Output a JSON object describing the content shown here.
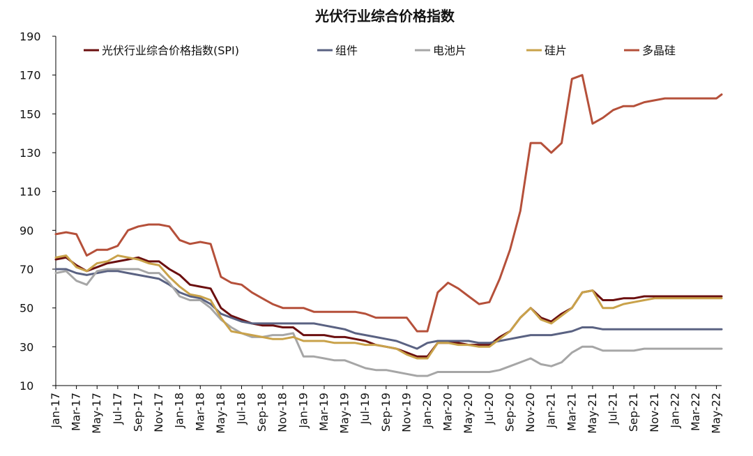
{
  "chart_data": {
    "type": "line",
    "title": "光伏行业综合价格指数",
    "xlabel": "",
    "ylabel": "",
    "ylim": [
      10,
      190
    ],
    "yticks": [
      10,
      30,
      50,
      70,
      90,
      110,
      130,
      150,
      170,
      190
    ],
    "grid": false,
    "legend_position": "top",
    "x_tick_labels": [
      "Jan-17",
      "Mar-17",
      "May-17",
      "Jul-17",
      "Sep-17",
      "Nov-17",
      "Jan-18",
      "Mar-18",
      "May-18",
      "Jul-18",
      "Sep-18",
      "Nov-18",
      "Jan-19",
      "Mar-19",
      "May-19",
      "Jul-19",
      "Sep-19",
      "Nov-19",
      "Jan-20",
      "Mar-20",
      "May-20",
      "Jul-20",
      "Sep-20",
      "Nov-20",
      "Jan-21",
      "Mar-21",
      "May-21",
      "Jul-21",
      "Sep-21",
      "Nov-21",
      "Jan-22",
      "Mar-22",
      "May-22"
    ],
    "x_range": [
      0,
      64.5
    ],
    "series": [
      {
        "name": "光伏行业综合价格指数(SPI)",
        "color": "#6b0f0f",
        "x": [
          0,
          1,
          2,
          3,
          4,
          5,
          6,
          7,
          8,
          9,
          10,
          11,
          12,
          13,
          14,
          15,
          16,
          17,
          18,
          19,
          20,
          21,
          22,
          23,
          24,
          25,
          26,
          27,
          28,
          29,
          30,
          31,
          32,
          33,
          34,
          35,
          36,
          37,
          38,
          39,
          40,
          41,
          42,
          43,
          44,
          45,
          46,
          47,
          48,
          49,
          50,
          51,
          52,
          53,
          54,
          55,
          56,
          57,
          58,
          59,
          60,
          61,
          62,
          63,
          64,
          64.5
        ],
        "y": [
          75,
          76,
          72,
          69,
          71,
          73,
          74,
          75,
          76,
          74,
          74,
          70,
          67,
          62,
          61,
          60,
          50,
          46,
          44,
          42,
          41,
          41,
          40,
          40,
          36,
          36,
          36,
          35,
          35,
          34,
          33,
          31,
          30,
          29,
          27,
          25,
          25,
          32,
          32,
          32,
          31,
          31,
          31,
          35,
          38,
          45,
          50,
          45,
          43,
          47,
          50,
          58,
          59,
          54,
          54,
          55,
          55,
          56,
          56,
          56,
          56,
          56,
          56,
          56,
          56,
          56
        ]
      },
      {
        "name": "组件",
        "color": "#5a6282",
        "x": [
          0,
          1,
          2,
          3,
          4,
          5,
          6,
          7,
          8,
          9,
          10,
          11,
          12,
          13,
          14,
          15,
          16,
          17,
          18,
          19,
          20,
          21,
          22,
          23,
          24,
          25,
          26,
          27,
          28,
          29,
          30,
          31,
          32,
          33,
          34,
          35,
          36,
          37,
          38,
          39,
          40,
          41,
          42,
          43,
          44,
          45,
          46,
          47,
          48,
          49,
          50,
          51,
          52,
          53,
          54,
          55,
          56,
          57,
          58,
          59,
          60,
          61,
          62,
          63,
          64,
          64.5
        ],
        "y": [
          70,
          70,
          68,
          67,
          68,
          69,
          69,
          68,
          67,
          66,
          65,
          62,
          58,
          56,
          55,
          52,
          47,
          45,
          43,
          42,
          42,
          42,
          42,
          42,
          42,
          42,
          41,
          40,
          39,
          37,
          36,
          35,
          34,
          33,
          31,
          29,
          32,
          33,
          33,
          33,
          33,
          32,
          32,
          33,
          34,
          35,
          36,
          36,
          36,
          37,
          38,
          40,
          40,
          39,
          39,
          39,
          39,
          39,
          39,
          39,
          39,
          39,
          39,
          39,
          39,
          39
        ]
      },
      {
        "name": "电池片",
        "color": "#a6a6a6",
        "x": [
          0,
          1,
          2,
          3,
          4,
          5,
          6,
          7,
          8,
          9,
          10,
          11,
          12,
          13,
          14,
          15,
          16,
          17,
          18,
          19,
          20,
          21,
          22,
          23,
          24,
          25,
          26,
          27,
          28,
          29,
          30,
          31,
          32,
          33,
          34,
          35,
          36,
          37,
          38,
          39,
          40,
          41,
          42,
          43,
          44,
          45,
          46,
          47,
          48,
          49,
          50,
          51,
          52,
          53,
          54,
          55,
          56,
          57,
          58,
          59,
          60,
          61,
          62,
          63,
          64,
          64.5
        ],
        "y": [
          68,
          69,
          64,
          62,
          69,
          70,
          70,
          70,
          70,
          68,
          68,
          63,
          56,
          54,
          54,
          50,
          44,
          40,
          37,
          35,
          35,
          36,
          36,
          37,
          25,
          25,
          24,
          23,
          23,
          21,
          19,
          18,
          18,
          17,
          16,
          15,
          15,
          17,
          17,
          17,
          17,
          17,
          17,
          18,
          20,
          22,
          24,
          21,
          20,
          22,
          27,
          30,
          30,
          28,
          28,
          28,
          28,
          29,
          29,
          29,
          29,
          29,
          29,
          29,
          29,
          29
        ]
      },
      {
        "name": "硅片",
        "color": "#c9a24a",
        "x": [
          0,
          1,
          2,
          3,
          4,
          5,
          6,
          7,
          8,
          9,
          10,
          11,
          12,
          13,
          14,
          15,
          16,
          17,
          18,
          19,
          20,
          21,
          22,
          23,
          24,
          25,
          26,
          27,
          28,
          29,
          30,
          31,
          32,
          33,
          34,
          35,
          36,
          37,
          38,
          39,
          40,
          41,
          42,
          43,
          44,
          45,
          46,
          47,
          48,
          49,
          50,
          51,
          52,
          53,
          54,
          55,
          56,
          57,
          58,
          59,
          60,
          61,
          62,
          63,
          64,
          64.5
        ],
        "y": [
          76,
          77,
          71,
          69,
          73,
          74,
          77,
          76,
          75,
          73,
          72,
          66,
          61,
          57,
          56,
          54,
          45,
          38,
          37,
          36,
          35,
          34,
          34,
          35,
          33,
          33,
          33,
          32,
          32,
          32,
          31,
          31,
          30,
          29,
          26,
          24,
          24,
          32,
          32,
          31,
          31,
          30,
          30,
          34,
          38,
          45,
          50,
          44,
          42,
          46,
          50,
          58,
          59,
          50,
          50,
          52,
          53,
          54,
          55,
          55,
          55,
          55,
          55,
          55,
          55,
          55
        ]
      },
      {
        "name": "多晶硅",
        "color": "#b5503a",
        "x": [
          0,
          1,
          2,
          3,
          4,
          5,
          6,
          7,
          8,
          9,
          10,
          11,
          12,
          13,
          14,
          15,
          16,
          17,
          18,
          19,
          20,
          21,
          22,
          23,
          24,
          25,
          26,
          27,
          28,
          29,
          30,
          31,
          32,
          33,
          34,
          35,
          36,
          37,
          38,
          39,
          40,
          41,
          42,
          43,
          44,
          45,
          46,
          47,
          48,
          49,
          50,
          51,
          52,
          53,
          54,
          55,
          56,
          57,
          58,
          59,
          60,
          61,
          62,
          63,
          64,
          64.5
        ],
        "y": [
          88,
          89,
          88,
          77,
          80,
          80,
          82,
          90,
          92,
          93,
          93,
          92,
          85,
          83,
          84,
          83,
          66,
          63,
          62,
          58,
          55,
          52,
          50,
          50,
          50,
          48,
          48,
          48,
          48,
          48,
          47,
          45,
          45,
          45,
          45,
          38,
          38,
          58,
          63,
          60,
          56,
          52,
          53,
          65,
          80,
          100,
          135,
          135,
          130,
          135,
          168,
          170,
          145,
          148,
          152,
          154,
          154,
          156,
          157,
          158,
          158,
          158,
          158,
          158,
          158,
          160
        ]
      }
    ]
  }
}
